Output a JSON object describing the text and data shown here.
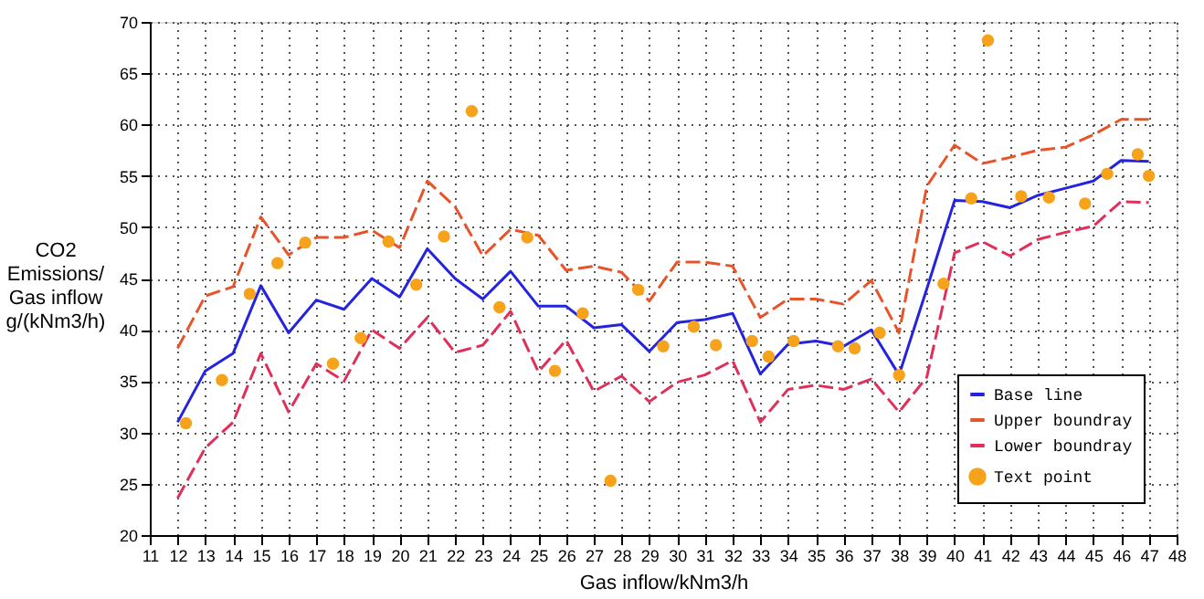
{
  "chart_data": {
    "type": "line",
    "xlabel": "Gas inflow/kNm3/h",
    "ylabel": "CO2 Emissions/Gas inflow g/(kNm3/h)",
    "x": [
      12,
      13,
      14,
      15,
      16,
      17,
      18,
      19,
      20,
      21,
      22,
      23,
      24,
      25,
      26,
      27,
      28,
      29,
      30,
      31,
      32,
      33,
      34,
      35,
      36,
      37,
      38,
      39,
      40,
      41,
      42,
      43,
      44,
      45,
      46,
      47
    ],
    "series": [
      {
        "name": "Base line",
        "color": "#2323e0",
        "line_style": "solid",
        "values": [
          31,
          36,
          37.7,
          44.3,
          39.7,
          42.9,
          42,
          45,
          43.2,
          47.9,
          45,
          43,
          45.7,
          42.3,
          42.3,
          40.2,
          40.5,
          37.9,
          40.7,
          41,
          41.6,
          35.7,
          38.6,
          38.9,
          38.4,
          40,
          35.6,
          44,
          52.6,
          52.5,
          51.9,
          53.1,
          53.8,
          54.5,
          56.5,
          56.4
        ]
      },
      {
        "name": "Upper boundray",
        "color": "#e8542a",
        "line_style": "dashed",
        "values": [
          38.2,
          43.3,
          44.2,
          51,
          47.3,
          49,
          49,
          49.7,
          48,
          54.5,
          52,
          47.2,
          49.8,
          49.2,
          45.8,
          46.2,
          45.6,
          42.8,
          46.6,
          46.6,
          46.2,
          41.2,
          43,
          43,
          42.5,
          44.8,
          39.7,
          54,
          58,
          56.2,
          56.8,
          57.5,
          57.8,
          59,
          60.5,
          60.5
        ]
      },
      {
        "name": "Lower boundray",
        "color": "#e0305a",
        "line_style": "dashed",
        "values": [
          23.6,
          28.5,
          31,
          37.7,
          32,
          36.7,
          35,
          40,
          38.2,
          41.2,
          37.8,
          38.5,
          41.8,
          35.9,
          39,
          34,
          35.5,
          33,
          34.9,
          35.6,
          37,
          31,
          34.2,
          34.6,
          34.2,
          35.2,
          32,
          35.4,
          47.5,
          48.6,
          47.2,
          48.8,
          49.5,
          50.1,
          52.5,
          52.4
        ]
      },
      {
        "name": "Text point",
        "type": "scatter",
        "marker": "circle",
        "color": "#f7a21b",
        "x": [
          12.3,
          13.6,
          14.6,
          15.6,
          16.6,
          17.6,
          18.6,
          19.6,
          20.6,
          21.6,
          22.6,
          23.6,
          24.6,
          25.6,
          26.6,
          27.6,
          28.6,
          29.5,
          30.6,
          31.4,
          32.7,
          33.3,
          34.2,
          35.8,
          36.4,
          37.3,
          38.0,
          39.6,
          40.6,
          41.2,
          42.4,
          43.4,
          44.7,
          45.5,
          46.6,
          47.0
        ],
        "values": [
          30.9,
          35.1,
          43.5,
          46.5,
          48.5,
          36.7,
          39.2,
          48.6,
          44.4,
          49.1,
          61.3,
          42.2,
          49,
          36,
          41.6,
          25.3,
          43.9,
          38.4,
          40.3,
          38.5,
          38.9,
          37.4,
          38.9,
          38.4,
          38.2,
          39.7,
          35.6,
          44.5,
          52.8,
          68.2,
          53,
          52.9,
          52.3,
          55.2,
          57.1,
          55
        ]
      }
    ],
    "xlim": [
      11,
      48
    ],
    "xticks": [
      11,
      12,
      13,
      14,
      15,
      16,
      17,
      18,
      19,
      20,
      21,
      22,
      23,
      24,
      25,
      26,
      27,
      28,
      29,
      30,
      31,
      32,
      33,
      34,
      35,
      36,
      37,
      38,
      39,
      40,
      41,
      42,
      43,
      44,
      45,
      46,
      47,
      48
    ],
    "ylim": [
      20,
      70
    ],
    "yticks": [
      20,
      25,
      30,
      35,
      40,
      45,
      50,
      55,
      60,
      65,
      70
    ],
    "grid": true,
    "legend": "bottom right"
  }
}
